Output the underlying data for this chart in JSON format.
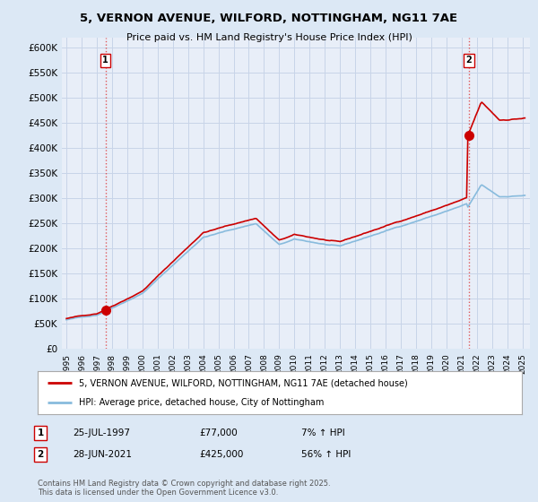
{
  "title": "5, VERNON AVENUE, WILFORD, NOTTINGHAM, NG11 7AE",
  "subtitle": "Price paid vs. HM Land Registry's House Price Index (HPI)",
  "ylim": [
    0,
    620000
  ],
  "yticks": [
    0,
    50000,
    100000,
    150000,
    200000,
    250000,
    300000,
    350000,
    400000,
    450000,
    500000,
    550000,
    600000
  ],
  "ytick_labels": [
    "£0",
    "£50K",
    "£100K",
    "£150K",
    "£200K",
    "£250K",
    "£300K",
    "£350K",
    "£400K",
    "£450K",
    "£500K",
    "£550K",
    "£600K"
  ],
  "transaction1_year": 1997.57,
  "transaction1_price": 77000,
  "transaction2_year": 2021.49,
  "transaction2_price": 425000,
  "legend_line1": "5, VERNON AVENUE, WILFORD, NOTTINGHAM, NG11 7AE (detached house)",
  "legend_line2": "HPI: Average price, detached house, City of Nottingham",
  "annotation1_date": "25-JUL-1997",
  "annotation1_price": "£77,000",
  "annotation1_hpi": "7% ↑ HPI",
  "annotation2_date": "28-JUN-2021",
  "annotation2_price": "£425,000",
  "annotation2_hpi": "56% ↑ HPI",
  "footer": "Contains HM Land Registry data © Crown copyright and database right 2025.\nThis data is licensed under the Open Government Licence v3.0.",
  "line_color_property": "#cc0000",
  "line_color_hpi": "#88bbdd",
  "bg_color": "#dce8f5",
  "plot_bg_color": "#e8eef8",
  "grid_color": "#c8d4e8"
}
